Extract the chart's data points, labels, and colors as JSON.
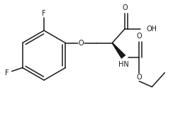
{
  "bg_color": "#ffffff",
  "line_color": "#1a1a1a",
  "line_width": 1.1,
  "font_size": 7.0,
  "font_family": "DejaVu Sans",
  "figsize": [
    2.44,
    1.65
  ],
  "dpi": 100,
  "xlim": [
    0,
    244
  ],
  "ylim": [
    0,
    165
  ]
}
